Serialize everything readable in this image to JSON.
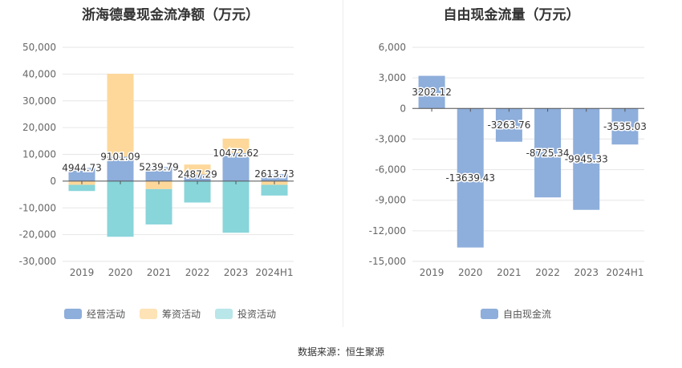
{
  "charts": [
    {
      "id": "net-cash",
      "title": "浙海德曼现金流净额（万元）",
      "type": "bar",
      "stacked": true,
      "categories": [
        "2019",
        "2020",
        "2021",
        "2022",
        "2023",
        "2024H1"
      ],
      "yticks": [
        50000,
        40000,
        30000,
        20000,
        10000,
        0,
        -10000,
        -20000,
        -30000
      ],
      "ytick_labels": [
        "50,000",
        "40,000",
        "30,000",
        "20,000",
        "10,000",
        "0",
        "-10,000",
        "-20,000",
        "-30,000"
      ],
      "ylim": [
        -30000,
        50000
      ],
      "series": [
        {
          "name": "经营活动",
          "color": "#8eaedb",
          "values": [
            4944.73,
            9101.09,
            5239.79,
            2487.29,
            10472.62,
            2613.73
          ]
        },
        {
          "name": "筹资活动",
          "color": "#fdd89a",
          "values": [
            -1400,
            31000,
            -3000,
            3700,
            5400,
            -1400
          ]
        },
        {
          "name": "投资活动",
          "color": "#88d5da",
          "values": [
            -2300,
            -20800,
            -13200,
            -8000,
            -19300,
            -4000
          ]
        }
      ],
      "data_labels": [
        "4944.73",
        "9101.09",
        "5239.79",
        "2487.29",
        "10472.62",
        "2613.73"
      ]
    },
    {
      "id": "free-cash",
      "title": "自由现金流量（万元）",
      "type": "bar",
      "categories": [
        "2019",
        "2020",
        "2021",
        "2022",
        "2023",
        "2024H1"
      ],
      "yticks": [
        6000,
        3000,
        0,
        -3000,
        -6000,
        -9000,
        -12000,
        -15000
      ],
      "ytick_labels": [
        "6,000",
        "3,000",
        "0",
        "-3,000",
        "-6,000",
        "-9,000",
        "-12,000",
        "-15,000"
      ],
      "ylim": [
        -15000,
        6000
      ],
      "series": [
        {
          "name": "自由现金流",
          "color": "#8eaedb",
          "values": [
            3202.12,
            -13639.43,
            -3263.76,
            -8725.34,
            -9945.33,
            -3535.03
          ]
        }
      ],
      "data_labels": [
        "3202.12",
        "-13639.43",
        "-3263.76",
        "-8725.34",
        "-9945.33",
        "-3535.03"
      ]
    }
  ],
  "legend1": [
    {
      "label": "经营活动",
      "color": "#8eaedb"
    },
    {
      "label": "筹资活动",
      "color": "#fde3b6"
    },
    {
      "label": "投资活动",
      "color": "#b9e6e9"
    }
  ],
  "legend2": [
    {
      "label": "自由现金流",
      "color": "#8eaedb"
    }
  ],
  "source": "数据来源：恒生聚源"
}
